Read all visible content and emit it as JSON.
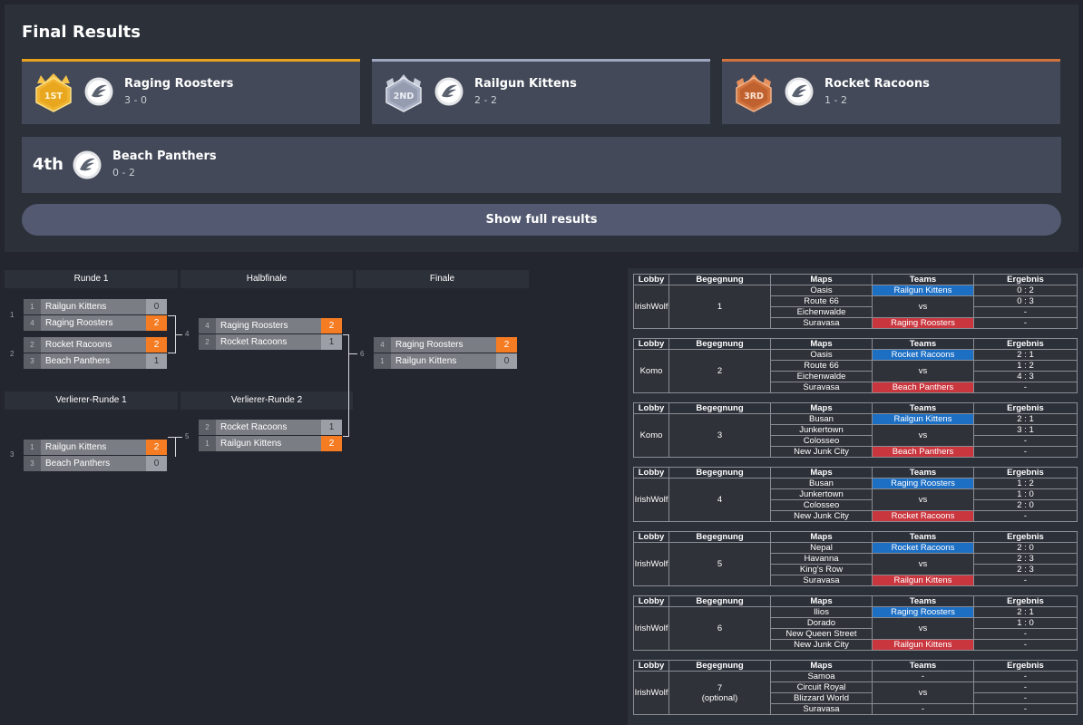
{
  "final_results": {
    "title": "Final Results",
    "podium": [
      {
        "badge": "1ST",
        "name": "Raging Roosters",
        "score": "3 - 0",
        "color": "#e8a21f"
      },
      {
        "badge": "2ND",
        "name": "Railgun Kittens",
        "score": "2 - 2",
        "color": "#9fa6bf"
      },
      {
        "badge": "3RD",
        "name": "Rocket Racoons",
        "score": "1 - 2",
        "color": "#d3743f"
      }
    ],
    "fourth": {
      "place": "4th",
      "name": "Beach Panthers",
      "score": "0 - 2"
    },
    "show_full_label": "Show full results"
  },
  "bracket": {
    "headers": [
      "Runde 1",
      "Halbfinale",
      "Finale",
      "Verlierer-Runde 1",
      "Verlierer-Runde 2"
    ],
    "matches": [
      {
        "num": "1",
        "slots": [
          {
            "seed": "1",
            "team": "Railgun Kittens",
            "score": "0",
            "win": false
          },
          {
            "seed": "4",
            "team": "Raging Roosters",
            "score": "2",
            "win": true
          }
        ]
      },
      {
        "num": "2",
        "slots": [
          {
            "seed": "2",
            "team": "Rocket Racoons",
            "score": "2",
            "win": true
          },
          {
            "seed": "3",
            "team": "Beach Panthers",
            "score": "1",
            "win": false
          }
        ]
      },
      {
        "num": "4",
        "slots": [
          {
            "seed": "4",
            "team": "Raging Roosters",
            "score": "2",
            "win": true
          },
          {
            "seed": "2",
            "team": "Rocket Racoons",
            "score": "1",
            "win": false
          }
        ]
      },
      {
        "num": "6",
        "slots": [
          {
            "seed": "4",
            "team": "Raging Roosters",
            "score": "2",
            "win": true
          },
          {
            "seed": "1",
            "team": "Railgun Kittens",
            "score": "0",
            "win": false
          }
        ]
      },
      {
        "num": "3",
        "slots": [
          {
            "seed": "1",
            "team": "Railgun Kittens",
            "score": "2",
            "win": true
          },
          {
            "seed": "3",
            "team": "Beach Panthers",
            "score": "0",
            "win": false
          }
        ]
      },
      {
        "num": "5",
        "slots": [
          {
            "seed": "2",
            "team": "Rocket Racoons",
            "score": "1",
            "win": false
          },
          {
            "seed": "1",
            "team": "Railgun Kittens",
            "score": "2",
            "win": true
          }
        ]
      }
    ]
  },
  "schedule": {
    "headers": [
      "Lobby",
      "Begegnung",
      "Maps",
      "Teams",
      "Ergebnis"
    ],
    "vs_label": "vs",
    "games": [
      {
        "lobby": "IrishWolf",
        "match": "1",
        "note": "",
        "team_a": "Railgun Kittens",
        "team_b": "Raging Roosters",
        "maps": [
          "Oasis",
          "Route 66",
          "Eichenwalde",
          "Suravasa"
        ],
        "results": [
          "0 : 2",
          "0 : 3",
          "-",
          "-"
        ]
      },
      {
        "lobby": "Komo",
        "match": "2",
        "note": "",
        "team_a": "Rocket Racoons",
        "team_b": "Beach Panthers",
        "maps": [
          "Oasis",
          "Route 66",
          "Eichenwalde",
          "Suravasa"
        ],
        "results": [
          "2 : 1",
          "1 : 2",
          "4 : 3",
          "-"
        ]
      },
      {
        "lobby": "Komo",
        "match": "3",
        "note": "",
        "team_a": "Railgun Kittens",
        "team_b": "Beach Panthers",
        "maps": [
          "Busan",
          "Junkertown",
          "Colosseo",
          "New Junk City"
        ],
        "results": [
          "2 : 1",
          "3 : 1",
          "-",
          "-"
        ]
      },
      {
        "lobby": "IrishWolf",
        "match": "4",
        "note": "",
        "team_a": "Raging Roosters",
        "team_b": "Rocket Racoons",
        "maps": [
          "Busan",
          "Junkertown",
          "Colosseo",
          "New Junk City"
        ],
        "results": [
          "1 : 2",
          "1 : 0",
          "2 : 0",
          "-"
        ]
      },
      {
        "lobby": "IrishWolf",
        "match": "5",
        "note": "",
        "team_a": "Rocket Racoons",
        "team_b": "Railgun Kittens",
        "maps": [
          "Nepal",
          "Havanna",
          "King's Row",
          "Suravasa"
        ],
        "results": [
          "2 : 0",
          "2 : 3",
          "2 : 3",
          "-"
        ]
      },
      {
        "lobby": "IrishWolf",
        "match": "6",
        "note": "",
        "team_a": "Raging Roosters",
        "team_b": "Railgun Kittens",
        "maps": [
          "Ilios",
          "Dorado",
          "New Queen Street",
          "New Junk City"
        ],
        "results": [
          "2 : 1",
          "1 : 0",
          "-",
          "-"
        ]
      },
      {
        "lobby": "IrishWolf",
        "match": "7",
        "note": "(optional)",
        "team_a": "-",
        "team_b": "-",
        "maps": [
          "Samoa",
          "Circuit Royal",
          "Blizzard World",
          "Suravasa"
        ],
        "results": [
          "-",
          "-",
          "-",
          "-"
        ]
      }
    ]
  },
  "colors": {
    "win": "#f57c22",
    "team_a": "#1d6fc4",
    "team_b": "#c9363e",
    "card": "#434958",
    "panel": "#2c3039",
    "background": "#23262e"
  },
  "icons": {
    "team_logo": "wing-logo-icon",
    "badge": "trophy-badge-icon"
  }
}
